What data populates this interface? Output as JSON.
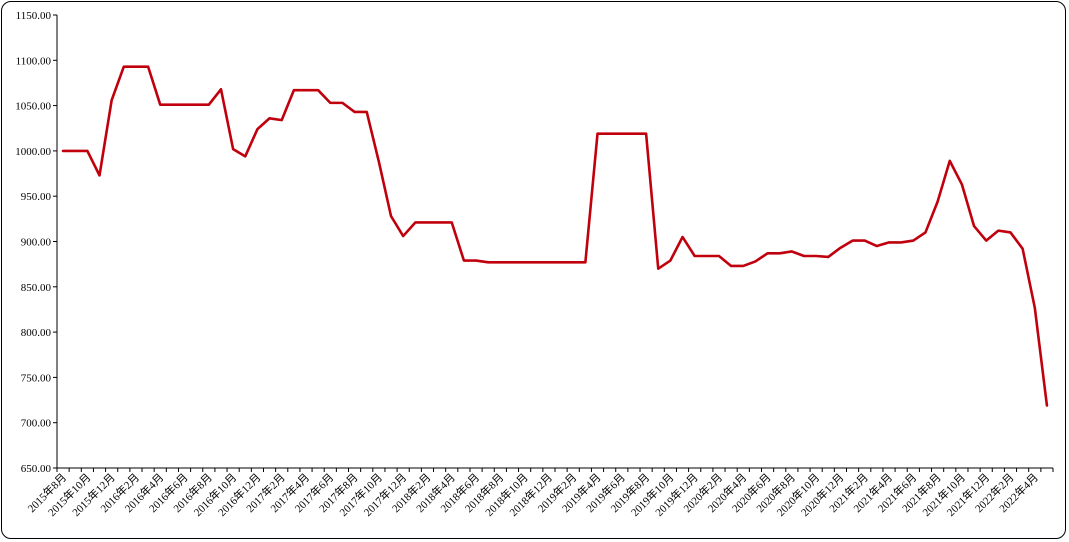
{
  "chart_data": {
    "type": "line",
    "title": "",
    "xlabel": "",
    "ylabel": "",
    "ylim": [
      650,
      1150
    ],
    "yticks": [
      "650.00",
      "700.00",
      "750.00",
      "800.00",
      "850.00",
      "900.00",
      "950.00",
      "1000.00",
      "1050.00",
      "1100.00",
      "1150.00"
    ],
    "xtick_labels": [
      "2015年8月",
      "2015年10月",
      "2015年12月",
      "2016年2月",
      "2016年4月",
      "2016年6月",
      "2016年8月",
      "2016年10月",
      "2016年12月",
      "2017年2月",
      "2017年4月",
      "2017年6月",
      "2017年8月",
      "2017年10月",
      "2017年12月",
      "2018年2月",
      "2018年4月",
      "2018年6月",
      "2018年8月",
      "2018年10月",
      "2018年12月",
      "2019年2月",
      "2019年4月",
      "2019年6月",
      "2019年8月",
      "2019年10月",
      "2019年12月",
      "2020年2月",
      "2020年4月",
      "2020年6月",
      "2020年8月",
      "2020年10月",
      "2020年12月",
      "2021年2月",
      "2021年4月",
      "2021年6月",
      "2021年8月",
      "2021年10月",
      "2021年12月",
      "2022年2月",
      "2022年4月"
    ],
    "grid": false,
    "legend": "none",
    "series_color": "#c0000c",
    "series": [
      {
        "values": [
          1000,
          1000,
          1000,
          973,
          1056,
          1093,
          1093,
          1093,
          1051,
          1051,
          1051,
          1051,
          1051,
          1068,
          1002,
          994,
          1024,
          1036,
          1034,
          1067,
          1067,
          1067,
          1053,
          1053,
          1043,
          1043,
          988,
          928,
          906,
          921,
          921,
          921,
          921,
          879,
          879,
          877,
          877,
          877,
          877,
          877,
          877,
          877,
          877,
          877,
          1019,
          1019,
          1019,
          1019,
          1019,
          870,
          879,
          905,
          884,
          884,
          884,
          873,
          873,
          878,
          887,
          887,
          889,
          884,
          884,
          883,
          893,
          901,
          901,
          895,
          899,
          899,
          901,
          910,
          944,
          989,
          963,
          917,
          901,
          912,
          910,
          892,
          827,
          719
        ]
      }
    ]
  }
}
